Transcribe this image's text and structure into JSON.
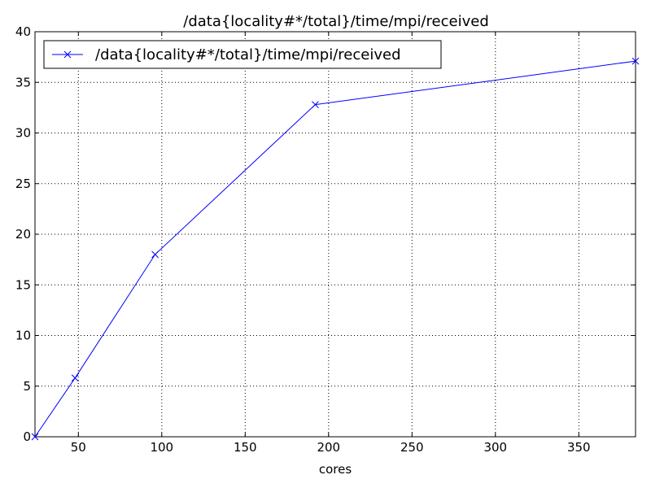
{
  "chart_data": {
    "type": "line",
    "title": "/data{locality#*/total}/time/mpi/received",
    "xlabel": "cores",
    "ylabel": "",
    "xlim": [
      24,
      384
    ],
    "ylim": [
      0,
      40
    ],
    "x_ticks": [
      50,
      100,
      150,
      200,
      250,
      300,
      350
    ],
    "y_ticks": [
      0,
      5,
      10,
      15,
      20,
      25,
      30,
      35,
      40
    ],
    "grid": true,
    "legend_position": "top-left",
    "series": [
      {
        "name": "/data{locality#*/total}/time/mpi/received",
        "color": "#0000ff",
        "marker": "x",
        "x": [
          24,
          48,
          96,
          192,
          384
        ],
        "y": [
          0.0,
          5.8,
          18.0,
          32.8,
          37.1
        ]
      }
    ]
  }
}
